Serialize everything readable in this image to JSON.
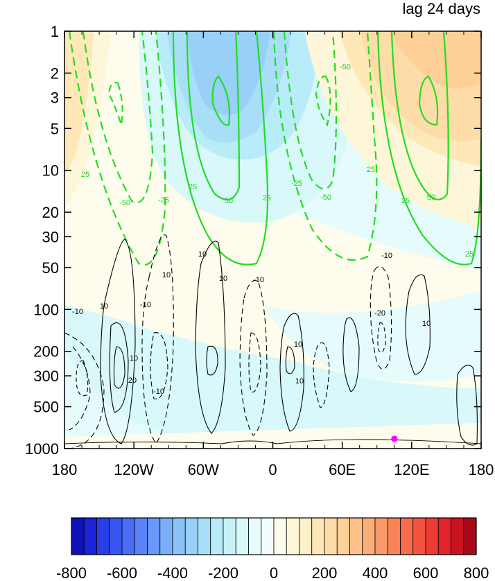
{
  "chart_data": {
    "type": "contour",
    "title_right": "lag 24 days",
    "x_ticks": [
      "180",
      "120W",
      "60W",
      "0",
      "60E",
      "120E",
      "180"
    ],
    "y_ticks": [
      "1",
      "2",
      "3",
      "5",
      "10",
      "20",
      "30",
      "50",
      "100",
      "200",
      "300",
      "500",
      "1000"
    ],
    "y_scale": "log",
    "y_reversed": true,
    "xlim": [
      -180,
      180
    ],
    "ylim": [
      1000,
      1
    ],
    "colorbar": {
      "orientation": "horizontal",
      "placement": "bottom",
      "tick_labels": [
        "-800",
        "-600",
        "-400",
        "-200",
        "0",
        "200",
        "400",
        "600",
        "800"
      ],
      "range": [
        -800,
        800
      ],
      "step": 50,
      "colors": [
        "#1010b8",
        "#1c22d6",
        "#2a3ee8",
        "#3a56f2",
        "#4a6cf6",
        "#5a84f8",
        "#6a98f8",
        "#7aaef8",
        "#8cc2f8",
        "#98d0f8",
        "#a8def8",
        "#b8ecf8",
        "#c8f2f8",
        "#d8f8fa",
        "#e6fcfc",
        "#f2fefe",
        "#fefcec",
        "#fef6d8",
        "#fef0c8",
        "#fee8b8",
        "#fedca8",
        "#fed098",
        "#fcc088",
        "#fcae78",
        "#fa9a68",
        "#f88458",
        "#f66c4c",
        "#f25440",
        "#ec3c34",
        "#e0242a",
        "#c81420",
        "#a80818"
      ]
    },
    "green_contour_labels": [
      "25",
      "-50",
      "-25",
      "25",
      "50",
      "-25",
      "-50",
      "25",
      "25",
      "50",
      "25",
      "-50",
      "25"
    ],
    "black_contour_labels": [
      "-10",
      "10",
      "-10",
      "10",
      "10",
      "-10",
      "-10",
      "10",
      "20",
      "-20",
      "10",
      "-10",
      "10",
      "10",
      "10"
    ],
    "marker": {
      "x": 105,
      "y": 850,
      "color": "#ff00ff"
    }
  }
}
